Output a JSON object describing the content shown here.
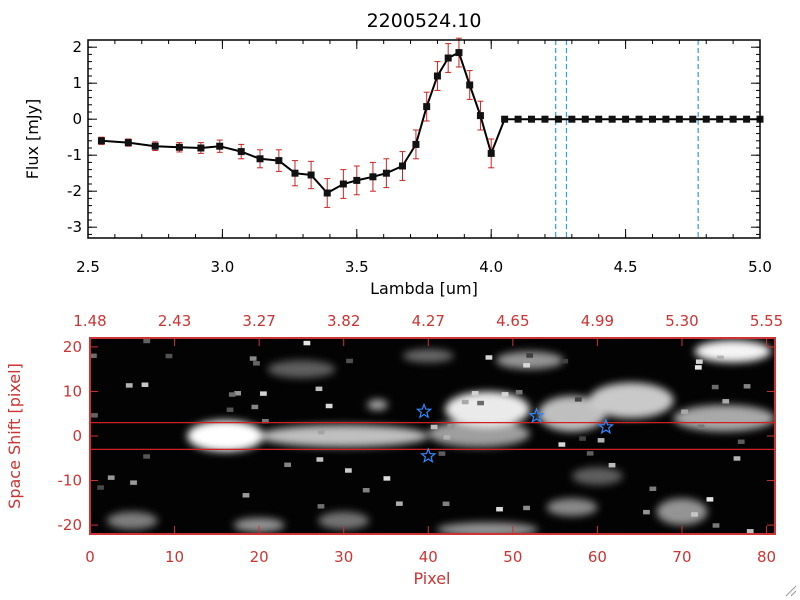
{
  "chart_data": [
    {
      "type": "line",
      "title": "2200524.10",
      "xlabel": "Lambda [um]",
      "ylabel": "Flux [mJy]",
      "xlim": [
        2.5,
        5.0
      ],
      "ylim": [
        -3.3,
        2.2
      ],
      "x_ticks": [
        "2.5",
        "3.0",
        "3.5",
        "4.0",
        "4.5",
        "5.0"
      ],
      "y_ticks": [
        "2",
        "1",
        "0",
        "-1",
        "-2",
        "-3"
      ],
      "series": [
        {
          "name": "flux",
          "x": [
            2.55,
            2.65,
            2.75,
            2.84,
            2.92,
            2.99,
            3.07,
            3.14,
            3.21,
            3.27,
            3.33,
            3.39,
            3.45,
            3.5,
            3.56,
            3.61,
            3.67,
            3.72,
            3.76,
            3.8,
            3.84,
            3.88,
            3.92,
            3.96,
            4.0,
            4.05,
            4.1,
            4.15,
            4.2,
            4.25,
            4.3,
            4.35,
            4.4,
            4.45,
            4.5,
            4.55,
            4.6,
            4.65,
            4.7,
            4.75,
            4.8,
            4.85,
            4.9,
            4.95,
            5.0
          ],
          "y": [
            -0.6,
            -0.65,
            -0.75,
            -0.78,
            -0.8,
            -0.75,
            -0.9,
            -1.1,
            -1.15,
            -1.5,
            -1.55,
            -2.05,
            -1.8,
            -1.7,
            -1.6,
            -1.5,
            -1.3,
            -0.7,
            0.35,
            1.2,
            1.7,
            1.85,
            0.95,
            0.1,
            -0.95,
            0.0,
            0.0,
            0.0,
            0.0,
            0.0,
            0.0,
            0.0,
            0.0,
            0.0,
            0.0,
            0.0,
            0.0,
            0.0,
            0.0,
            0.0,
            0.0,
            0.0,
            0.0,
            0.0,
            0.0
          ],
          "err": [
            0.1,
            0.1,
            0.12,
            0.13,
            0.15,
            0.17,
            0.2,
            0.25,
            0.3,
            0.35,
            0.38,
            0.4,
            0.4,
            0.4,
            0.4,
            0.4,
            0.4,
            0.4,
            0.4,
            0.4,
            0.4,
            0.4,
            0.4,
            0.4,
            0.4,
            0,
            0,
            0,
            0,
            0,
            0,
            0,
            0,
            0,
            0,
            0,
            0,
            0,
            0,
            0,
            0,
            0,
            0,
            0,
            0
          ]
        }
      ],
      "vlines": [
        4.24,
        4.28,
        4.77
      ],
      "grid": false
    },
    {
      "type": "heatmap",
      "xlabel": "Pixel",
      "ylabel": "Space Shift [pixel]",
      "xlim": [
        0,
        81
      ],
      "ylim": [
        -22,
        22
      ],
      "x_ticks": [
        "0",
        "10",
        "20",
        "30",
        "40",
        "50",
        "60",
        "70",
        "80"
      ],
      "y_ticks": [
        "20",
        "10",
        "0",
        "-10",
        "-20"
      ],
      "top_ticks": [
        "1.48",
        "2.43",
        "3.27",
        "3.82",
        "4.27",
        "4.65",
        "4.99",
        "5.30",
        "5.55"
      ],
      "aperture_lines": [
        3,
        -3
      ],
      "star_markers": [
        {
          "x": 39.5,
          "y": 5.5
        },
        {
          "x": 40.0,
          "y": -4.5
        },
        {
          "x": 52.8,
          "y": 4.5
        },
        {
          "x": 61.0,
          "y": 2.0
        }
      ],
      "blobs": [
        {
          "x": 16,
          "y": 0,
          "rx": 4.5,
          "ry": 3.5,
          "v": 1.0
        },
        {
          "x": 30,
          "y": 0,
          "rx": 10,
          "ry": 2.5,
          "v": 0.7
        },
        {
          "x": 46,
          "y": 0.5,
          "rx": 6,
          "ry": 3,
          "v": 0.55
        },
        {
          "x": 47,
          "y": 6,
          "rx": 5,
          "ry": 4,
          "v": 0.9
        },
        {
          "x": 57,
          "y": 5,
          "rx": 4,
          "ry": 4,
          "v": 0.7
        },
        {
          "x": 64,
          "y": 8,
          "rx": 5,
          "ry": 4,
          "v": 0.75
        },
        {
          "x": 75,
          "y": 4,
          "rx": 6,
          "ry": 3,
          "v": 0.6
        },
        {
          "x": 76,
          "y": 19,
          "rx": 4.5,
          "ry": 2.5,
          "v": 0.95
        },
        {
          "x": 52,
          "y": 17,
          "rx": 4,
          "ry": 2,
          "v": 0.5
        },
        {
          "x": 20,
          "y": -20,
          "rx": 3,
          "ry": 1.6,
          "v": 0.5
        },
        {
          "x": 5,
          "y": -19,
          "rx": 3,
          "ry": 2,
          "v": 0.4
        },
        {
          "x": 47,
          "y": -21,
          "rx": 6,
          "ry": 1.6,
          "v": 0.5
        },
        {
          "x": 57,
          "y": -16,
          "rx": 3,
          "ry": 2,
          "v": 0.45
        },
        {
          "x": 70,
          "y": -17,
          "rx": 3,
          "ry": 3,
          "v": 0.5
        },
        {
          "x": 30,
          "y": -19,
          "rx": 3,
          "ry": 2,
          "v": 0.35
        },
        {
          "x": 34,
          "y": 7,
          "rx": 1.2,
          "ry": 1.2,
          "v": 0.6
        },
        {
          "x": 40,
          "y": 18,
          "rx": 3,
          "ry": 1.5,
          "v": 0.3
        },
        {
          "x": 25,
          "y": 15,
          "rx": 4,
          "ry": 2,
          "v": 0.25
        },
        {
          "x": 60,
          "y": -9,
          "rx": 3,
          "ry": 2,
          "v": 0.25
        }
      ]
    }
  ],
  "colors": {
    "line": "#000000",
    "marker": "#111111",
    "errorbar": "#cc2222",
    "vline": "#3399ee",
    "panel2_axes": "#cc3333",
    "aperture": "#cc2222",
    "star": "#3388ff"
  }
}
